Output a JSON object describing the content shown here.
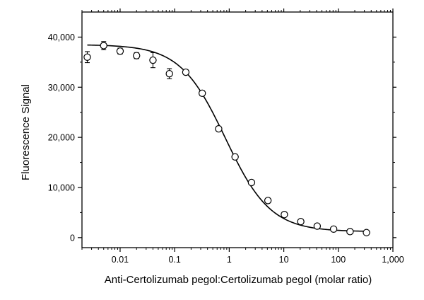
{
  "chart_data": {
    "type": "scatter",
    "xscale": "log",
    "xlabel": "Anti-Certolizumab pegol:Certolizumab pegol (molar ratio)",
    "ylabel": "Fluorescence Signal",
    "xlim": [
      0.002,
      1000
    ],
    "ylim": [
      -2000,
      45000
    ],
    "x_ticks": [
      0.01,
      0.1,
      1,
      10,
      100,
      1000
    ],
    "x_tick_labels": [
      "0.01",
      "0.1",
      "1",
      "10",
      "100",
      "1,000"
    ],
    "y_ticks": [
      0,
      10000,
      20000,
      30000,
      40000
    ],
    "y_tick_labels": [
      "0",
      "10,000",
      "20,000",
      "30,000",
      "40,000"
    ],
    "grid": false,
    "series": [
      {
        "marker": "open-circle",
        "color": "#000000",
        "x": [
          0.0025,
          0.005,
          0.01,
          0.02,
          0.04,
          0.08,
          0.16,
          0.32,
          0.64,
          1.28,
          2.56,
          5.12,
          10.24,
          20.48,
          40.96,
          81.92,
          163.84,
          327.68
        ],
        "y": [
          36000,
          38300,
          37200,
          36300,
          35400,
          32700,
          33000,
          28800,
          21700,
          16100,
          11000,
          7400,
          4600,
          3200,
          2300,
          1700,
          1200,
          1000
        ],
        "error": [
          1100,
          800,
          600,
          600,
          1500,
          1000,
          500,
          500,
          400,
          500,
          300,
          300,
          300,
          400,
          400,
          400,
          300,
          400
        ]
      }
    ],
    "fit_curve": {
      "type": "4PL",
      "top": 38500,
      "bottom": 1200,
      "ec50": 0.85,
      "hill": 1.05,
      "x_range": [
        0.0025,
        330
      ],
      "color": "#000000"
    }
  }
}
